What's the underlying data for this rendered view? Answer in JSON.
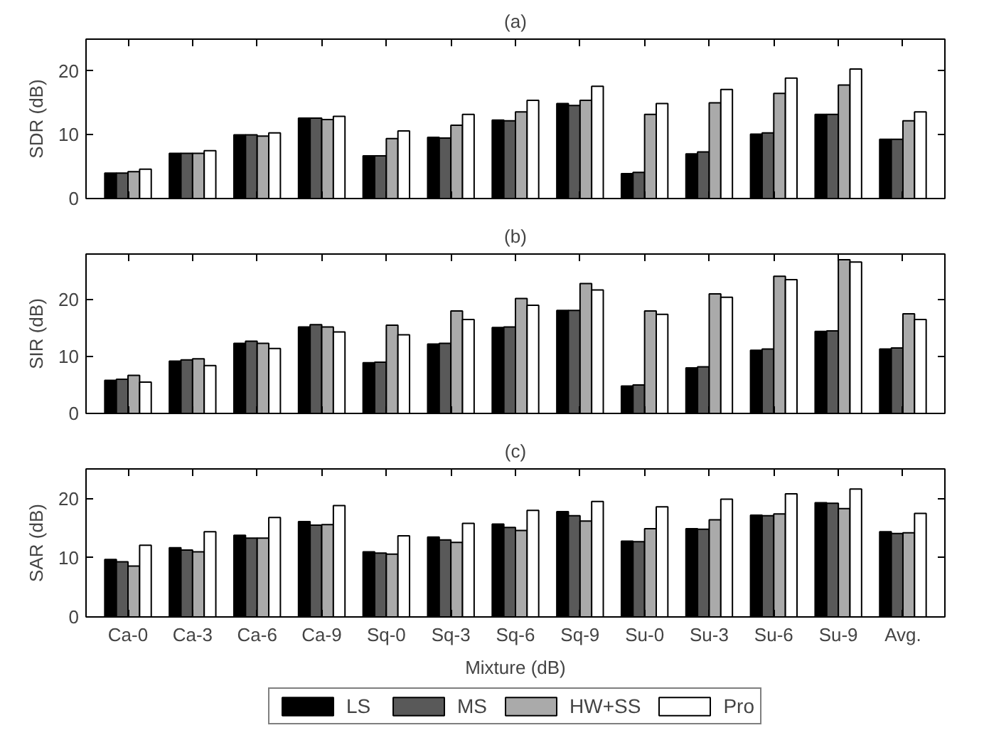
{
  "chart_data": [
    {
      "type": "bar",
      "title": "(a)",
      "ylabel": "SDR (dB)",
      "categories": [
        null,
        null,
        null,
        null,
        null,
        null,
        null,
        null,
        null,
        null,
        null,
        null,
        null
      ],
      "ylim": [
        0,
        25
      ],
      "yticks": [
        0,
        10,
        20
      ],
      "tick_labels": "y",
      "grid": false,
      "legend": false,
      "series": [
        {
          "color": "#000000",
          "values": [
            4.0,
            7.1,
            10.0,
            12.6,
            6.7,
            9.6,
            12.3,
            14.9,
            3.9,
            7.0,
            10.1,
            13.2,
            9.3
          ]
        },
        {
          "color": "#595959",
          "values": [
            4.0,
            7.1,
            10.0,
            12.6,
            6.7,
            9.5,
            12.2,
            14.6,
            4.1,
            7.3,
            10.3,
            13.2,
            9.3
          ]
        },
        {
          "color": "#aaaaaa",
          "values": [
            4.2,
            7.1,
            9.8,
            12.4,
            9.4,
            11.5,
            13.6,
            15.4,
            13.2,
            15.0,
            16.5,
            17.8,
            12.2
          ]
        },
        {
          "color": "#ffffff",
          "values": [
            4.6,
            7.5,
            10.3,
            12.9,
            10.6,
            13.2,
            15.4,
            17.6,
            14.9,
            17.1,
            18.9,
            20.3,
            13.6
          ]
        }
      ]
    },
    {
      "type": "bar",
      "title": "(b)",
      "ylabel": "SIR (dB)",
      "categories": [
        null,
        null,
        null,
        null,
        null,
        null,
        null,
        null,
        null,
        null,
        null,
        null,
        null
      ],
      "ylim": [
        0,
        28
      ],
      "yticks": [
        0,
        10,
        20
      ],
      "tick_labels": "y",
      "grid": false,
      "legend": false,
      "series": [
        {
          "color": "#000000",
          "values": [
            5.8,
            9.2,
            12.3,
            15.2,
            8.9,
            12.2,
            15.1,
            18.1,
            4.8,
            8.0,
            11.1,
            14.4,
            11.3
          ]
        },
        {
          "color": "#595959",
          "values": [
            6.0,
            9.4,
            12.7,
            15.6,
            9.0,
            12.3,
            15.2,
            18.1,
            5.0,
            8.2,
            11.3,
            14.5,
            11.5
          ]
        },
        {
          "color": "#aaaaaa",
          "values": [
            6.7,
            9.6,
            12.3,
            15.2,
            15.5,
            18.0,
            20.2,
            22.8,
            18.0,
            21.0,
            24.1,
            27.0,
            17.5
          ]
        },
        {
          "color": "#ffffff",
          "values": [
            5.5,
            8.4,
            11.4,
            14.3,
            13.8,
            16.5,
            19.0,
            21.7,
            17.4,
            20.4,
            23.5,
            26.6,
            16.5
          ]
        }
      ]
    },
    {
      "type": "bar",
      "title": "(c)",
      "ylabel": "SAR (dB)",
      "xlabel": "Mixture (dB)",
      "categories": [
        "Ca-0",
        "Ca-3",
        "Ca-6",
        "Ca-9",
        "Sq-0",
        "Sq-3",
        "Sq-6",
        "Sq-9",
        "Su-0",
        "Su-3",
        "Su-6",
        "Su-9",
        "Avg."
      ],
      "ylim": [
        0,
        25
      ],
      "yticks": [
        0,
        10,
        20
      ],
      "grid": false,
      "legend": "bottom",
      "series": [
        {
          "name": "LS",
          "color": "#000000",
          "values": [
            9.7,
            11.7,
            13.8,
            16.1,
            11.0,
            13.5,
            15.7,
            17.8,
            12.8,
            14.9,
            17.2,
            19.3,
            14.4
          ]
        },
        {
          "name": "MS",
          "color": "#595959",
          "values": [
            9.3,
            11.3,
            13.3,
            15.5,
            10.8,
            13.0,
            15.1,
            17.1,
            12.7,
            14.8,
            17.1,
            19.2,
            14.1
          ]
        },
        {
          "name": "HW+SS",
          "color": "#aaaaaa",
          "values": [
            8.6,
            11.0,
            13.3,
            15.6,
            10.6,
            12.6,
            14.6,
            16.2,
            14.9,
            16.4,
            17.4,
            18.3,
            14.2
          ]
        },
        {
          "name": "Pro",
          "color": "#ffffff",
          "values": [
            12.1,
            14.4,
            16.8,
            18.8,
            13.7,
            15.8,
            18.0,
            19.5,
            18.6,
            19.9,
            20.8,
            21.6,
            17.5
          ]
        }
      ]
    }
  ]
}
